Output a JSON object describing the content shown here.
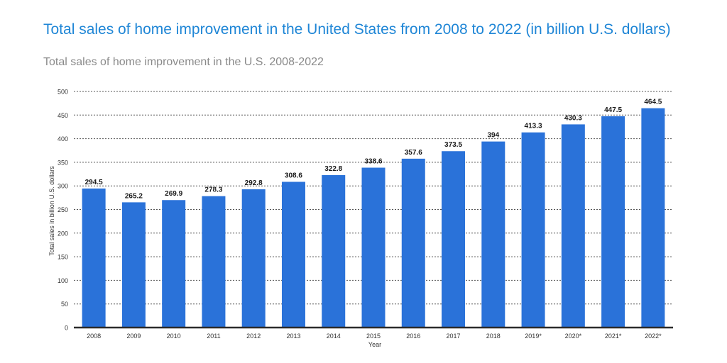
{
  "chart_data": {
    "type": "bar",
    "title": "Total sales of home improvement in the United States from 2008 to 2022 (in billion U.S. dollars)",
    "subtitle": "Total sales of home improvement in the U.S. 2008-2022",
    "xlabel": "Year",
    "ylabel": "Total sales in billion U.S. dollars",
    "ylim": [
      0,
      500
    ],
    "yticks": [
      0,
      50,
      100,
      150,
      200,
      250,
      300,
      350,
      400,
      450,
      500
    ],
    "grid": true,
    "categories": [
      "2008",
      "2009",
      "2010",
      "2011",
      "2012",
      "2013",
      "2014",
      "2015",
      "2016",
      "2017",
      "2018",
      "2019*",
      "2020*",
      "2021*",
      "2022*"
    ],
    "values": [
      294.5,
      265.2,
      269.9,
      278.3,
      292.8,
      308.6,
      322.8,
      338.6,
      357.6,
      373.5,
      394,
      413.3,
      430.3,
      447.5,
      464.5
    ],
    "data_labels": [
      "294.5",
      "265.2",
      "269.9",
      "278.3",
      "292.8",
      "308.6",
      "322.8",
      "338.6",
      "357.6",
      "373.5",
      "394",
      "413.3",
      "430.3",
      "447.5",
      "464.5"
    ],
    "colors": {
      "bar": "#2a72d9",
      "title": "#1f86d6",
      "subtitle": "#8a8a8a"
    }
  }
}
